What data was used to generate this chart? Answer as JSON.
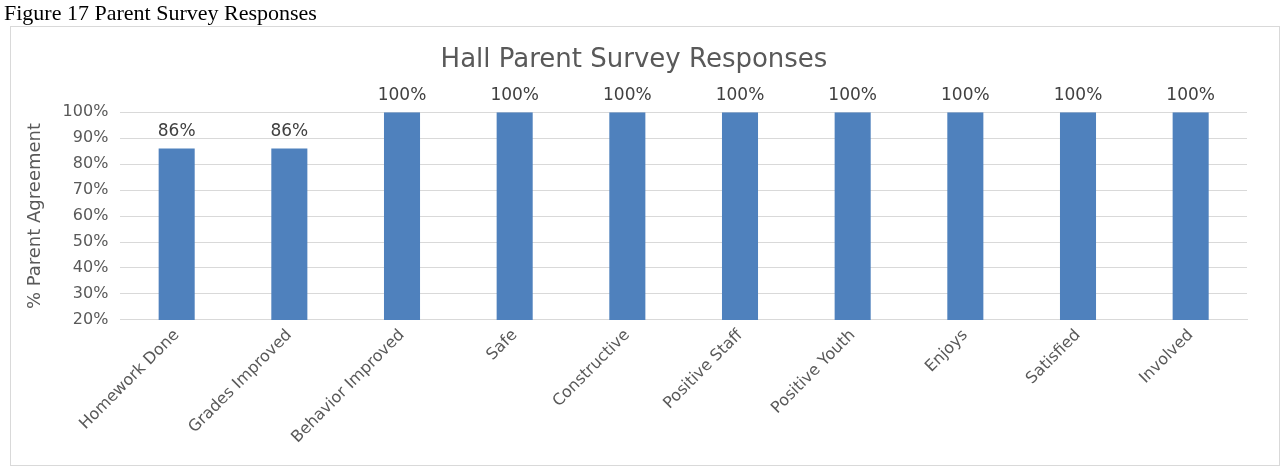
{
  "chart_data": {
    "type": "bar",
    "title": "Hall Parent Survey Responses",
    "ylabel": "% Parent Agreement",
    "annotations": [
      "Figure 17 Parent Survey Responses"
    ],
    "categories": [
      "Homework Done",
      "Grades Improved",
      "Behavior Improved",
      "Safe",
      "Constructive",
      "Positive Staff",
      "Positive Youth",
      "Enjoys",
      "Satisfied",
      "Involved"
    ],
    "values": [
      86,
      86,
      100,
      100,
      100,
      100,
      100,
      100,
      100,
      100
    ],
    "value_labels": [
      "86%",
      "86%",
      "100%",
      "100%",
      "100%",
      "100%",
      "100%",
      "100%",
      "100%",
      "100%"
    ],
    "color": "#4f81bd",
    "ylim": [
      20,
      100
    ],
    "yticks": [
      {
        "value": 20,
        "label": "20%"
      },
      {
        "value": 30,
        "label": "30%"
      },
      {
        "value": 40,
        "label": "40%"
      },
      {
        "value": 50,
        "label": "50%"
      },
      {
        "value": 60,
        "label": "60%"
      },
      {
        "value": 70,
        "label": "70%"
      },
      {
        "value": 80,
        "label": "80%"
      },
      {
        "value": 90,
        "label": "90%"
      },
      {
        "value": 100,
        "label": "100%"
      }
    ],
    "grid": "y",
    "legend": false
  }
}
